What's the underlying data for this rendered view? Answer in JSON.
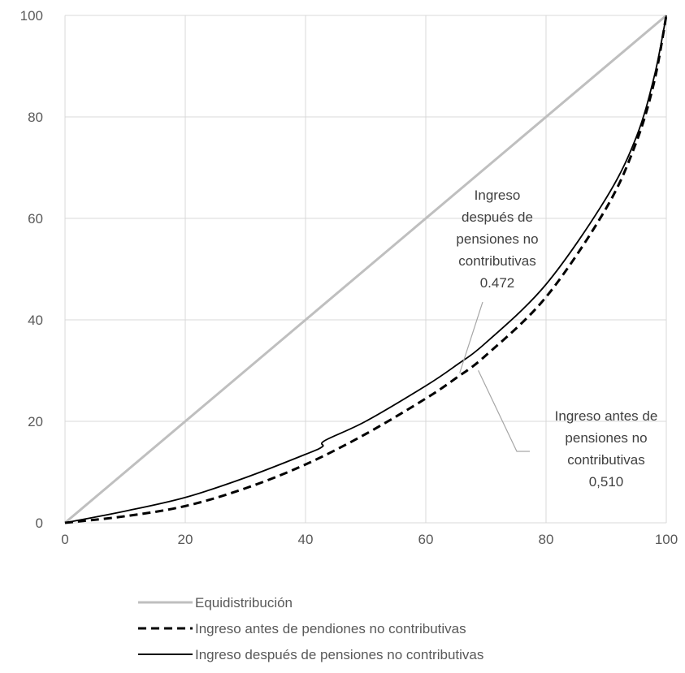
{
  "chart_data": {
    "type": "line",
    "xlim": [
      0,
      100
    ],
    "ylim": [
      0,
      100
    ],
    "x_ticks": [
      "0",
      "20",
      "40",
      "60",
      "80",
      "100"
    ],
    "y_ticks": [
      "0",
      "20",
      "40",
      "60",
      "80",
      "100"
    ],
    "grid": true,
    "legend_placement": "bottom",
    "series": [
      {
        "name": "Equidistribución",
        "color": "#bfbfbf",
        "style": "solid",
        "x": [
          0,
          100
        ],
        "y": [
          0,
          100
        ]
      },
      {
        "name": "Ingreso antes de pendiones no contributivas",
        "color": "#000000",
        "style": "dashed",
        "x": [
          0,
          10,
          20,
          30,
          40,
          50,
          60,
          65,
          70,
          80,
          90,
          95,
          98,
          100
        ],
        "y": [
          0,
          1.3,
          3.3,
          6.8,
          11.5,
          17.5,
          24.5,
          28.5,
          33,
          44.5,
          62,
          75,
          87,
          100
        ]
      },
      {
        "name": "Ingreso después de pensiones no contributivas",
        "color": "#000000",
        "style": "solid",
        "x": [
          0,
          10,
          20,
          30,
          40,
          42.8,
          43.2,
          50,
          60,
          65,
          70,
          80,
          90,
          95,
          98,
          100
        ],
        "y": [
          0,
          2.3,
          5,
          8.9,
          13.5,
          15,
          16.2,
          20,
          27,
          31,
          35.5,
          47,
          64,
          76,
          88,
          100
        ]
      }
    ],
    "annotations": [
      {
        "lines": [
          "Ingreso",
          "después de",
          "pensiones no",
          "contributivas",
          "0.472"
        ],
        "target": [
          65.5,
          30
        ]
      },
      {
        "lines": [
          "Ingreso antes de",
          "pensiones no",
          "contributivas",
          "0,510"
        ],
        "target": [
          69,
          31
        ]
      }
    ]
  }
}
